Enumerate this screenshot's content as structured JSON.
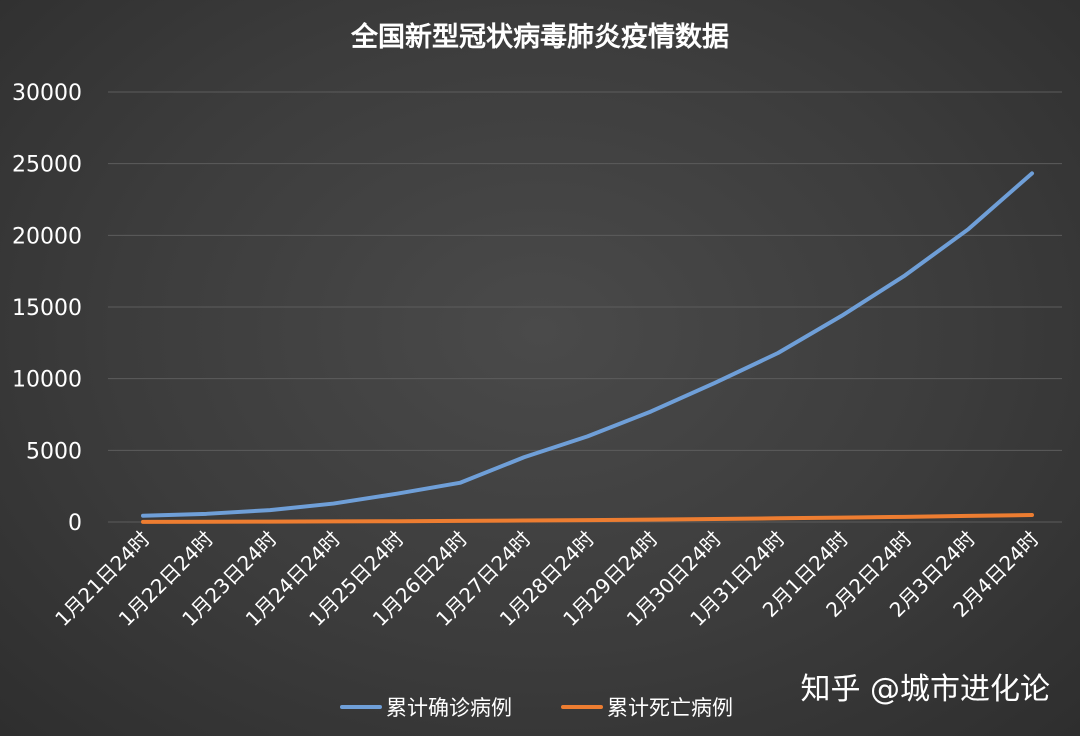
{
  "watermark": "知乎 @城市进化论",
  "chart_data": {
    "type": "line",
    "title": "全国新型冠状病毒肺炎疫情数据",
    "xlabel": "",
    "ylabel": "",
    "ylim": [
      0,
      30000
    ],
    "yticks": [
      "0",
      "5000",
      "10000",
      "15000",
      "20000",
      "25000",
      "30000"
    ],
    "grid": true,
    "legend_position": "bottom",
    "categories": [
      "1月21日24时",
      "1月22日24时",
      "1月23日24时",
      "1月24日24时",
      "1月25日24时",
      "1月26日24时",
      "1月27日24时",
      "1月28日24时",
      "1月29日24时",
      "1月30日24时",
      "1月31日24时",
      "2月1日24时",
      "2月2日24时",
      "2月3日24时",
      "2月4日24时"
    ],
    "series": [
      {
        "name": "累计确诊病例",
        "color": "#6f9fd8",
        "values": [
          440,
          571,
          830,
          1287,
          1975,
          2744,
          4515,
          5974,
          7711,
          9692,
          11791,
          14380,
          17205,
          20438,
          24324
        ]
      },
      {
        "name": "累计死亡病例",
        "color": "#ed7d31",
        "values": [
          9,
          17,
          25,
          41,
          56,
          80,
          106,
          132,
          170,
          213,
          259,
          304,
          361,
          425,
          490
        ]
      }
    ]
  }
}
